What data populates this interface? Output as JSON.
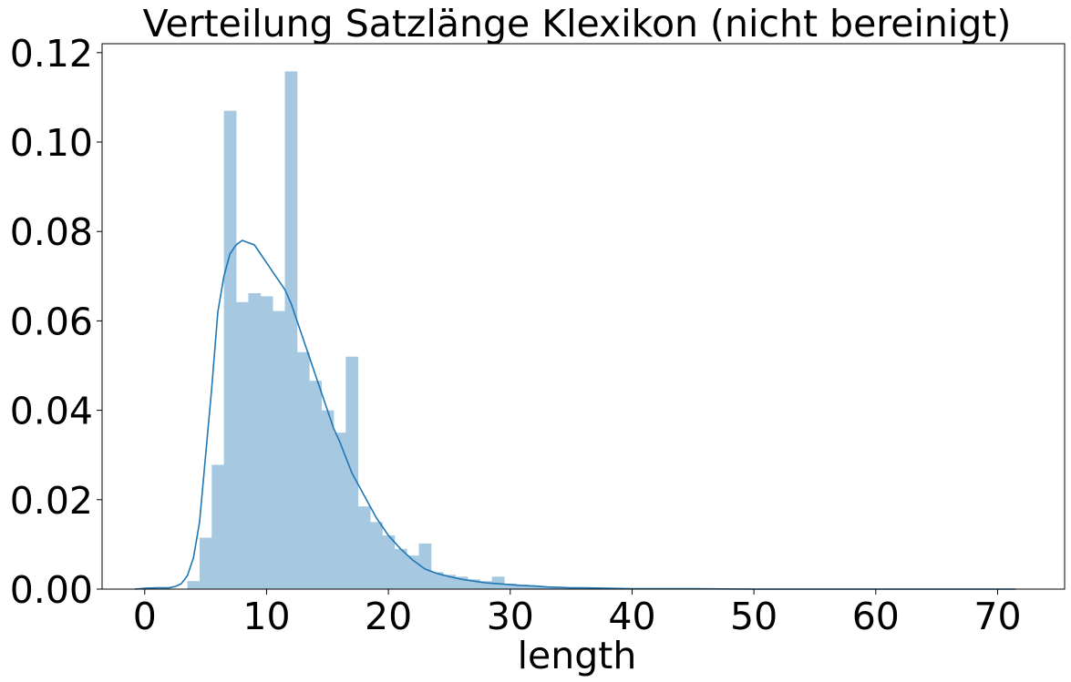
{
  "chart_data": {
    "type": "bar",
    "title": "Verteilung Satzlänge Klexikon (nicht bereinigt)",
    "xlabel": "length",
    "ylabel": "",
    "xlim": [
      -3.5,
      75.5
    ],
    "ylim": [
      0,
      0.122
    ],
    "xticks": [
      0,
      10,
      20,
      30,
      40,
      50,
      60,
      70
    ],
    "xtick_labels": [
      "0",
      "10",
      "20",
      "30",
      "40",
      "50",
      "60",
      "70"
    ],
    "yticks": [
      0.0,
      0.02,
      0.04,
      0.06,
      0.08,
      0.1,
      0.12
    ],
    "ytick_labels": [
      "0.00",
      "0.02",
      "0.04",
      "0.06",
      "0.08",
      "0.10",
      "0.12"
    ],
    "grid": false,
    "bin_edges": [
      3.5,
      4.5,
      5.5,
      6.5,
      7.5,
      8.5,
      9.5,
      10.5,
      11.5,
      12.5,
      13.5,
      14.5,
      15.5,
      16.5,
      17.5,
      18.5,
      19.5,
      20.5,
      21.5,
      22.5,
      23.5,
      24.5,
      25.5,
      26.5,
      27.5,
      28.5,
      29.5,
      30.5,
      31.5,
      32.5,
      33.5,
      34.5,
      35.5,
      36.5,
      37.5,
      38.5,
      39.5,
      40.5
    ],
    "values": [
      0.0018,
      0.0115,
      0.0278,
      0.107,
      0.0642,
      0.0662,
      0.0655,
      0.0622,
      0.1158,
      0.053,
      0.0466,
      0.04,
      0.035,
      0.052,
      0.0185,
      0.015,
      0.012,
      0.009,
      0.0075,
      0.0102,
      0.0038,
      0.0032,
      0.0028,
      0.0022,
      0.0018,
      0.0028,
      0.0012,
      0.001,
      0.0008,
      0.0006,
      0.0005,
      0.0004,
      0.0003,
      0.0003,
      0.0002,
      0.0002,
      0.0001
    ],
    "bar_color": "#a6c8e0",
    "kde": {
      "color": "#1f77b4",
      "x": [
        -0.8,
        0,
        1,
        2,
        2.5,
        3,
        3.5,
        4,
        4.5,
        5,
        5.5,
        6,
        6.5,
        7,
        7.5,
        8,
        8.5,
        9,
        9.5,
        10,
        10.5,
        11,
        11.5,
        12,
        12.5,
        13,
        13.5,
        14,
        14.5,
        15,
        15.5,
        16,
        17,
        18,
        19,
        20,
        21,
        22,
        23,
        24,
        25,
        26,
        27,
        28,
        29,
        30,
        31,
        32,
        33,
        34,
        35,
        36,
        38,
        40,
        45,
        50,
        55,
        60,
        65,
        70,
        71.5
      ],
      "y": [
        0.0,
        0.0002,
        0.0003,
        0.0003,
        0.0006,
        0.0012,
        0.003,
        0.007,
        0.015,
        0.03,
        0.045,
        0.062,
        0.07,
        0.075,
        0.077,
        0.078,
        0.0775,
        0.077,
        0.075,
        0.073,
        0.071,
        0.069,
        0.067,
        0.064,
        0.06,
        0.056,
        0.052,
        0.048,
        0.044,
        0.04,
        0.036,
        0.033,
        0.026,
        0.021,
        0.016,
        0.012,
        0.009,
        0.0065,
        0.0045,
        0.0035,
        0.0028,
        0.0022,
        0.0018,
        0.0014,
        0.0012,
        0.001,
        0.0008,
        0.0007,
        0.0005,
        0.0004,
        0.0003,
        0.0003,
        0.0002,
        0.0001,
        0.0001,
        0.0,
        0.0,
        0.0,
        0.0,
        0.0,
        0.0
      ]
    }
  }
}
